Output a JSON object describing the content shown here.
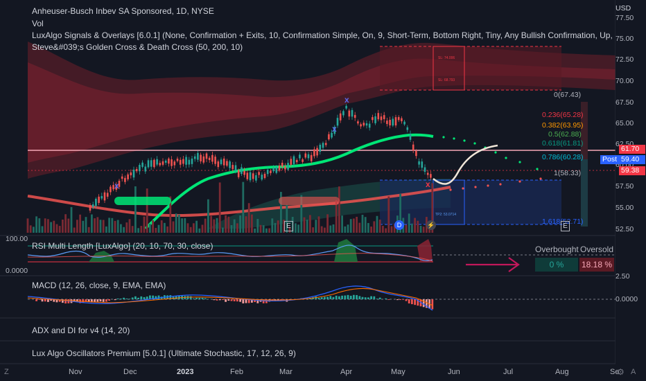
{
  "header": {
    "title": "Anheuser-Busch Inbev SA Sponsored, 1D, NYSE",
    "lines": [
      "Vol",
      "LuxAlgo Signals & Overlays [6.0.1] (None, Confirmation + Exits, 10, Confirmation Simple, On, 9, Short-Term, Bottom Right, Tiny, Any Bullish Confirmation, Up, Up, Up, Up, Within Upper Zone, Gre",
      "Steve&#039;s Golden Cross & Death Cross (50, 200, 10)"
    ]
  },
  "price_axis": {
    "currency": "USD",
    "ticks": [
      "77.50",
      "75.00",
      "72.50",
      "70.00",
      "67.50",
      "65.00",
      "62.50",
      "60.00",
      "57.50",
      "55.00",
      "52.50"
    ],
    "tags": [
      {
        "label": "61.70",
        "color": "#f23645"
      },
      {
        "label": "Post",
        "color": "#2962ff"
      },
      {
        "label": "59.40",
        "color": "#2962ff"
      },
      {
        "label": "59.38",
        "color": "#f23645"
      }
    ]
  },
  "fib_levels": [
    {
      "label": "0(67.43)",
      "color": "#b2b5be"
    },
    {
      "label": "0.236(65.28)",
      "color": "#f23645"
    },
    {
      "label": "0.382(63.95)",
      "color": "#ff9800"
    },
    {
      "label": "0.5(62.88)",
      "color": "#4caf50"
    },
    {
      "label": "0.618(61.81)",
      "color": "#089981"
    },
    {
      "label": "0.786(60.28)",
      "color": "#00bcd4"
    },
    {
      "label": "1(58.33)",
      "color": "#b2b5be"
    },
    {
      "label": "1.618(52.71)",
      "color": "#2962ff"
    }
  ],
  "markers": {
    "earnings": "E",
    "dividend": "D",
    "split": "⚡",
    "earnings_future": "E"
  },
  "zone_labels": {
    "sl_top": "SL: 74.006",
    "sl_mid": "SL: 68.793",
    "tp": "TP2: 53.0714"
  },
  "rsi_pane": {
    "title": "RSI Multi Length [LuxAlgo] (20, 10, 70, 30, close)",
    "scale_top": "100.00",
    "scale_bottom": "0.0000",
    "table": {
      "header_overbought": "Overbought",
      "header_oversold": "Oversold",
      "value_overbought": "0 %",
      "value_oversold": "18.18 %"
    }
  },
  "macd_pane": {
    "title": "MACD (12, 26, close, 9, EMA, EMA)",
    "scale_top": "2.50",
    "scale_zero": "0.0000"
  },
  "adx_pane": {
    "title": "ADX and DI for v4 (14, 20)"
  },
  "osc_pane": {
    "title": "Lux Algo Oscillators Premium [5.0.1] (Ultimate Stochastic, 17, 12, 26, 9)"
  },
  "time_axis": {
    "labels": [
      "Nov",
      "Dec",
      "2023",
      "Feb",
      "Mar",
      "Apr",
      "May",
      "Jun",
      "Jul",
      "Aug",
      "Se"
    ],
    "corner_left": "Z",
    "corner_right_gear": "⚙",
    "corner_right_a": "A"
  }
}
